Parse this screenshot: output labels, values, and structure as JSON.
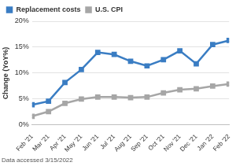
{
  "chart_data": {
    "type": "line",
    "y_label": "Change (YoY%)",
    "annotations": [
      "Data accessed 3/15/2022"
    ],
    "categories": [
      "Feb '21",
      "Mar '21",
      "Apr '21",
      "May '21",
      "Jun '21",
      "Jul '21",
      "Aug '21",
      "Sep '21",
      "Oct '21",
      "Nov '21",
      "Dec '21",
      "Jan '22",
      "Feb '22"
    ],
    "series": [
      {
        "name": "Replacement costs",
        "color": "#3a7dc3",
        "marker": "square",
        "values": [
          3.9,
          4.6,
          8.2,
          10.7,
          14.0,
          13.6,
          12.3,
          11.4,
          12.6,
          14.3,
          11.8,
          15.5,
          16.3
        ]
      },
      {
        "name": "U.S. CPI",
        "color": "#a6a6a6",
        "marker": "square",
        "values": [
          1.7,
          2.6,
          4.2,
          5.0,
          5.4,
          5.4,
          5.3,
          5.4,
          6.2,
          6.8,
          7.0,
          7.5,
          7.9
        ]
      }
    ],
    "ylim": [
      0,
      20
    ],
    "yticks": [
      {
        "value": 0,
        "label": "0%"
      },
      {
        "value": 5,
        "label": "5%"
      },
      {
        "value": 10,
        "label": "10%"
      },
      {
        "value": 15,
        "label": "15%"
      },
      {
        "value": 20,
        "label": "20%"
      }
    ],
    "grid": true,
    "legend": "top-left"
  }
}
